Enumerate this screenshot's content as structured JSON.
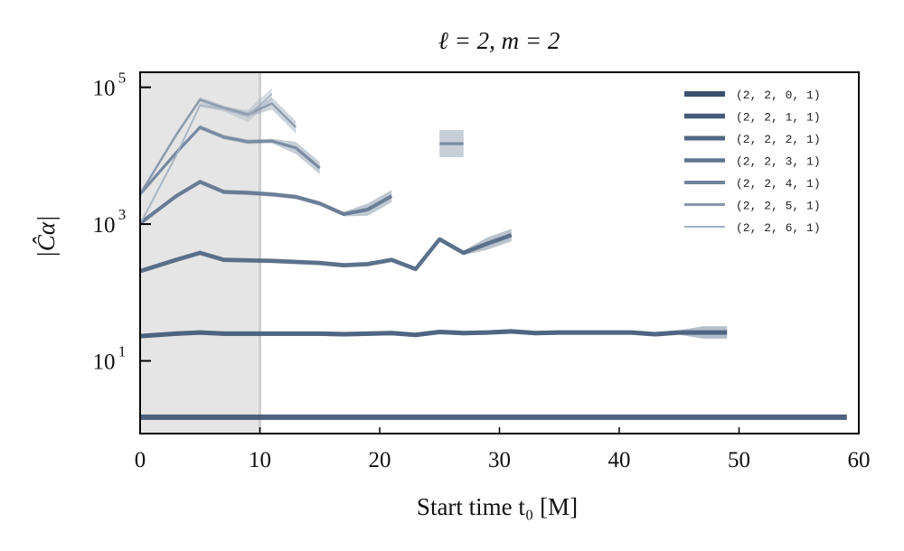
{
  "chart_data": {
    "type": "line",
    "title": "ℓ = 2, m = 2",
    "xlabel": "Start time t₀ [M]",
    "ylabel": "|Ĉα|",
    "xlim": [
      0,
      60
    ],
    "ylim": [
      0.865,
      166000
    ],
    "yscale": "log",
    "x_ticks": [
      "0",
      "10",
      "20",
      "30",
      "40",
      "50",
      "60"
    ],
    "x_tick_values": [
      0,
      10,
      20,
      30,
      40,
      50,
      60
    ],
    "y_ticks": [
      {
        "base": "10",
        "exp": "1",
        "value": 10
      },
      {
        "base": "10",
        "exp": "3",
        "value": 1000
      },
      {
        "base": "10",
        "exp": "5",
        "value": 100000
      }
    ],
    "shaded_region": [
      0,
      10
    ],
    "legend_position": "top-right",
    "series": [
      {
        "name": "(2, 2, 0, 1)",
        "color": "#3a5170",
        "x": [
          0,
          59
        ],
        "values": [
          1.5,
          1.5
        ]
      },
      {
        "name": "(2, 2, 1, 1)",
        "color": "#445b7a",
        "x": [
          0,
          3,
          5,
          7,
          9,
          11,
          13,
          15,
          17,
          19,
          21,
          23,
          25,
          27,
          29,
          31,
          33,
          35,
          37,
          39,
          41,
          43,
          45,
          47,
          49
        ],
        "values": [
          23,
          25,
          26,
          25,
          25,
          25,
          25,
          25,
          24.5,
          25,
          25.5,
          24,
          26.5,
          25.5,
          26,
          27,
          25.5,
          26,
          26,
          26,
          26,
          24.5,
          26,
          26,
          26
        ]
      },
      {
        "name": "(2, 2, 2, 1)",
        "color": "#516783",
        "x": [
          0,
          3,
          5,
          7,
          9,
          11,
          13,
          15,
          17,
          19,
          21,
          23,
          25,
          27,
          29,
          31
        ],
        "values": [
          205,
          300,
          380,
          300,
          295,
          290,
          280,
          270,
          250,
          260,
          300,
          220,
          600,
          380,
          520,
          690
        ]
      },
      {
        "name": "(2, 2, 3, 1)",
        "color": "#60758f",
        "x": [
          0,
          3,
          5,
          7,
          9,
          11,
          13,
          15,
          17,
          19,
          21
        ],
        "values": [
          1030,
          2560,
          4150,
          2950,
          2870,
          2720,
          2500,
          2000,
          1400,
          1630,
          2570
        ]
      },
      {
        "name": "(2, 2, 4, 1)",
        "color": "#71849c",
        "x": [
          0,
          3,
          5,
          7,
          9,
          11,
          13,
          15,
          25,
          27
        ],
        "values": [
          2750,
          11000,
          26000,
          18700,
          16000,
          16400,
          13000,
          6600,
          15000,
          15000
        ],
        "break_after_index": 7
      },
      {
        "name": "(2, 2, 5, 1)",
        "color": "#8696ab",
        "x": [
          0,
          3,
          5,
          7,
          9,
          11,
          13
        ],
        "values": [
          2750,
          20000,
          66000,
          50000,
          40000,
          58000,
          26000
        ]
      },
      {
        "name": "(2, 2, 6, 1)",
        "color": "#a2afc0",
        "x": [
          0,
          3,
          5,
          7,
          9,
          11
        ],
        "values": [
          1000,
          10000,
          55000,
          48000,
          38000,
          80000
        ]
      }
    ]
  }
}
